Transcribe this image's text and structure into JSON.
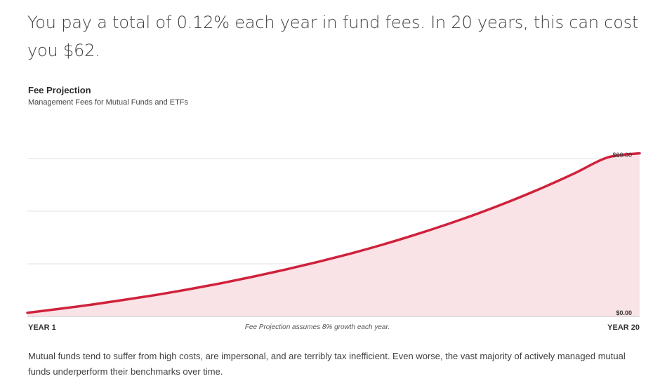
{
  "header": {
    "headline": "You pay a total of 0.12% each year in fund fees. In 20 years, this can cost you $62."
  },
  "chart": {
    "title": "Fee Projection",
    "subtitle": "Management Fees for Mutual Funds and ETFs",
    "note": "Fee Projection assumes 8% growth each year.",
    "x_start_label": "YEAR 1",
    "x_end_label": "YEAR 20",
    "top_value_label": "$60.00",
    "bottom_value_label": "$0.00"
  },
  "chart_data": {
    "type": "area",
    "title": "Fee Projection",
    "subtitle": "Management Fees for Mutual Funds and ETFs",
    "x": [
      1,
      2,
      3,
      4,
      5,
      6,
      7,
      8,
      9,
      10,
      11,
      12,
      13,
      14,
      15,
      16,
      17,
      18,
      19,
      20
    ],
    "x_tick_labels": [
      "YEAR 1",
      "YEAR 20"
    ],
    "series": [
      {
        "values": [
          1.4,
          2.9,
          4.5,
          6.3,
          8.2,
          10.3,
          12.6,
          15.1,
          17.8,
          20.7,
          23.8,
          27.2,
          30.9,
          34.9,
          39.2,
          43.9,
          49.0,
          54.5,
          60.4,
          62.0
        ]
      }
    ],
    "y_tick_labels": [
      "$0.00",
      "$60.00"
    ],
    "ylim": [
      0,
      60
    ],
    "grid": true,
    "colors": {
      "line": "#d0213b",
      "fill": "#f9e3e6",
      "grid": "#e2e2e2",
      "baseline": "#c8c8c8"
    }
  },
  "footer": {
    "text": "Mutual funds tend to suffer from high costs, are impersonal, and are terribly tax inefficient. Even worse, the vast majority of actively managed mutual funds underperform their benchmarks over time."
  }
}
